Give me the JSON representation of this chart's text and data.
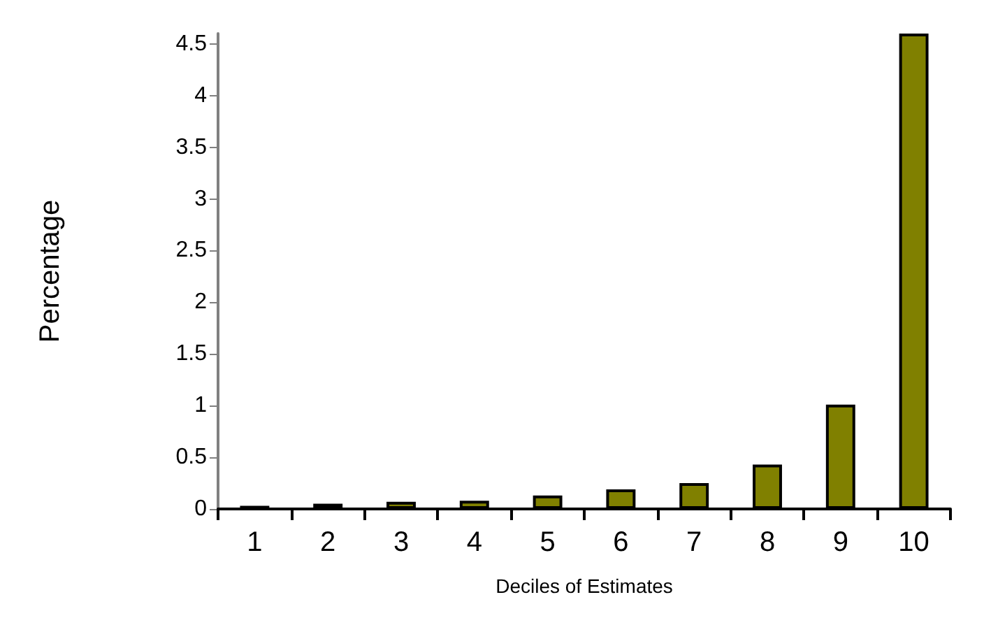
{
  "chart_data": {
    "type": "bar",
    "xlabel": "Deciles of Estimates",
    "ylabel": "Percentage",
    "categories": [
      "1",
      "2",
      "3",
      "4",
      "5",
      "6",
      "7",
      "8",
      "9",
      "10"
    ],
    "values": [
      0.03,
      0.05,
      0.07,
      0.08,
      0.13,
      0.19,
      0.25,
      0.43,
      1.01,
      4.6
    ],
    "color": "#808000",
    "ylim": [
      0,
      4.6
    ],
    "yticks": [
      0,
      0.5,
      1,
      1.5,
      2,
      2.5,
      3,
      3.5,
      4,
      4.5
    ],
    "grid": false
  }
}
